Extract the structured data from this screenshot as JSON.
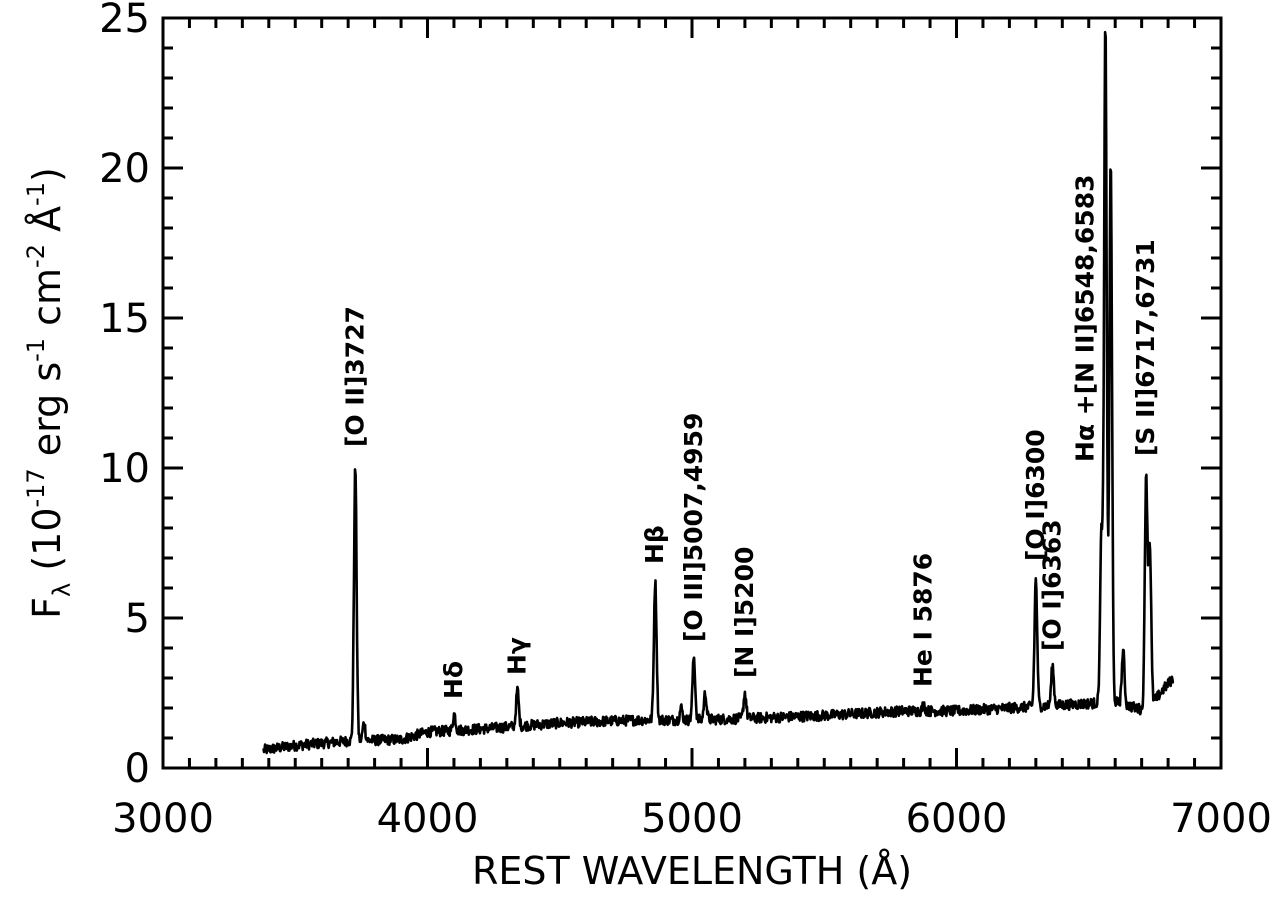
{
  "chart_data": {
    "type": "line",
    "xlabel": "REST WAVELENGTH (Å)",
    "ylabel": {
      "main": "F",
      "sub": "λ",
      "rest": " (10",
      "exp1": "-17",
      "mid1": " erg s",
      "exp2": "-1",
      "mid2": " cm",
      "exp3": "-2",
      "mid3": " Å",
      "exp4": "-1",
      "end": ")"
    },
    "xlim": [
      3000,
      7000
    ],
    "ylim": [
      0,
      25
    ],
    "x_ticks": [
      3000,
      4000,
      5000,
      6000,
      7000
    ],
    "y_ticks": [
      0,
      5,
      10,
      15,
      20,
      25
    ],
    "x_tick_labels": [
      "3000",
      "4000",
      "5000",
      "6000",
      "7000"
    ],
    "y_tick_labels": [
      "0",
      "5",
      "10",
      "15",
      "20",
      "25"
    ],
    "grid": false,
    "continuum": [
      [
        3380,
        0.6
      ],
      [
        3500,
        0.75
      ],
      [
        3700,
        0.9
      ],
      [
        3900,
        0.95
      ],
      [
        4000,
        1.2
      ],
      [
        4200,
        1.3
      ],
      [
        4500,
        1.5
      ],
      [
        4800,
        1.6
      ],
      [
        5000,
        1.6
      ],
      [
        5200,
        1.65
      ],
      [
        5500,
        1.75
      ],
      [
        5800,
        1.9
      ],
      [
        6000,
        1.9
      ],
      [
        6200,
        2.0
      ],
      [
        6400,
        2.1
      ],
      [
        6600,
        2.2
      ],
      [
        6720,
        1.9
      ],
      [
        6780,
        2.6
      ],
      [
        6820,
        3.0
      ]
    ],
    "emission_lines": [
      {
        "wavelength": 3727,
        "peak": 10.0
      },
      {
        "wavelength": 3760,
        "peak": 1.5
      },
      {
        "wavelength": 4101,
        "peak": 1.8
      },
      {
        "wavelength": 4340,
        "peak": 2.6
      },
      {
        "wavelength": 4861,
        "peak": 6.2
      },
      {
        "wavelength": 4959,
        "peak": 2.0
      },
      {
        "wavelength": 5007,
        "peak": 3.7
      },
      {
        "wavelength": 5050,
        "peak": 2.5
      },
      {
        "wavelength": 5200,
        "peak": 2.5
      },
      {
        "wavelength": 5876,
        "peak": 2.1
      },
      {
        "wavelength": 6300,
        "peak": 6.3
      },
      {
        "wavelength": 6363,
        "peak": 3.4
      },
      {
        "wavelength": 6548,
        "peak": 7.8
      },
      {
        "wavelength": 6563,
        "peak": 24.7
      },
      {
        "wavelength": 6583,
        "peak": 20.3
      },
      {
        "wavelength": 6630,
        "peak": 3.9
      },
      {
        "wavelength": 6717,
        "peak": 9.8
      },
      {
        "wavelength": 6731,
        "peak": 7.4
      }
    ],
    "annotations": [
      {
        "text": "[O II]3727",
        "x": 3727,
        "y": 10.5
      },
      {
        "text": "Hδ",
        "x": 4101,
        "y": 2.1
      },
      {
        "text": "Hγ",
        "x": 4340,
        "y": 2.9
      },
      {
        "text": "Hβ",
        "x": 4861,
        "y": 6.6
      },
      {
        "text": "[O III]5007,4959",
        "x": 5007,
        "y": 4.0
      },
      {
        "text": "[N I]5200",
        "x": 5200,
        "y": 2.8
      },
      {
        "text": "He I 5876",
        "x": 5876,
        "y": 2.5
      },
      {
        "text": "[O I]6300",
        "x": 6300,
        "y": 6.7
      },
      {
        "text": "[O I]6363",
        "x": 6363,
        "y": 3.7
      },
      {
        "text": "Hα +[N II]6548,6583",
        "x": 6488,
        "y": 10.0
      },
      {
        "text": "[S II]6717,6731",
        "x": 6717,
        "y": 10.2
      }
    ]
  }
}
